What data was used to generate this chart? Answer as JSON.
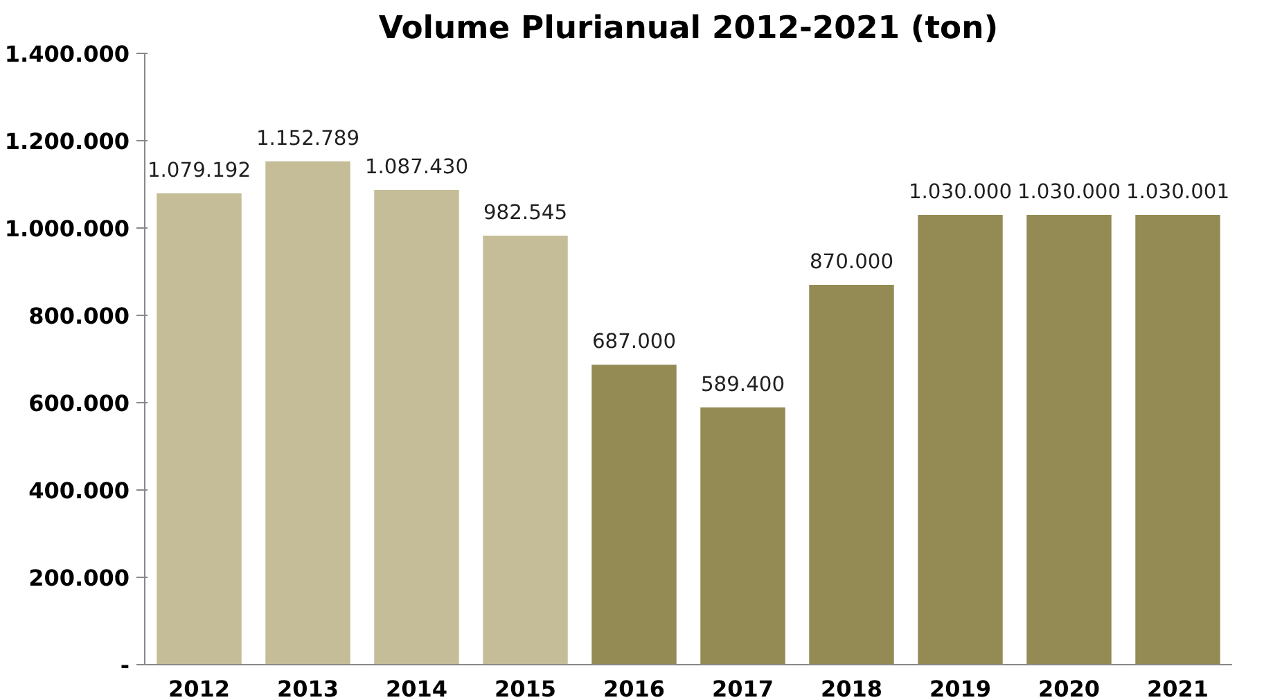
{
  "chart_data": {
    "type": "bar",
    "title": "Volume Plurianual 2012-2021 (ton)",
    "categories": [
      "2012",
      "2013",
      "2014",
      "2015",
      "2016",
      "2017",
      "2018",
      "2019",
      "2020",
      "2021"
    ],
    "values": [
      1079192,
      1152789,
      1087430,
      982545,
      687000,
      589400,
      870000,
      1030000,
      1030000,
      1030001
    ],
    "value_labels": [
      "1.079.192",
      "1.152.789",
      "1.087.430",
      "982.545",
      "687.000",
      "589.400",
      "870.000",
      "1.030.000",
      "1.030.000",
      "1.030.001"
    ],
    "colors": [
      "#c4bd97",
      "#c4bd97",
      "#c4bd97",
      "#c4bd97",
      "#948a54",
      "#948a54",
      "#948a54",
      "#948a54",
      "#948a54",
      "#948a54"
    ],
    "ylim": [
      0,
      1400000
    ],
    "yticks": [
      {
        "value": 0,
        "label": "-"
      },
      {
        "value": 200000,
        "label": "200.000"
      },
      {
        "value": 400000,
        "label": "400.000"
      },
      {
        "value": 600000,
        "label": "600.000"
      },
      {
        "value": 800000,
        "label": "800.000"
      },
      {
        "value": 1000000,
        "label": "1.000.000"
      },
      {
        "value": 1200000,
        "label": "1.200.000"
      },
      {
        "value": 1400000,
        "label": "1.400.000"
      }
    ],
    "grid": false
  }
}
